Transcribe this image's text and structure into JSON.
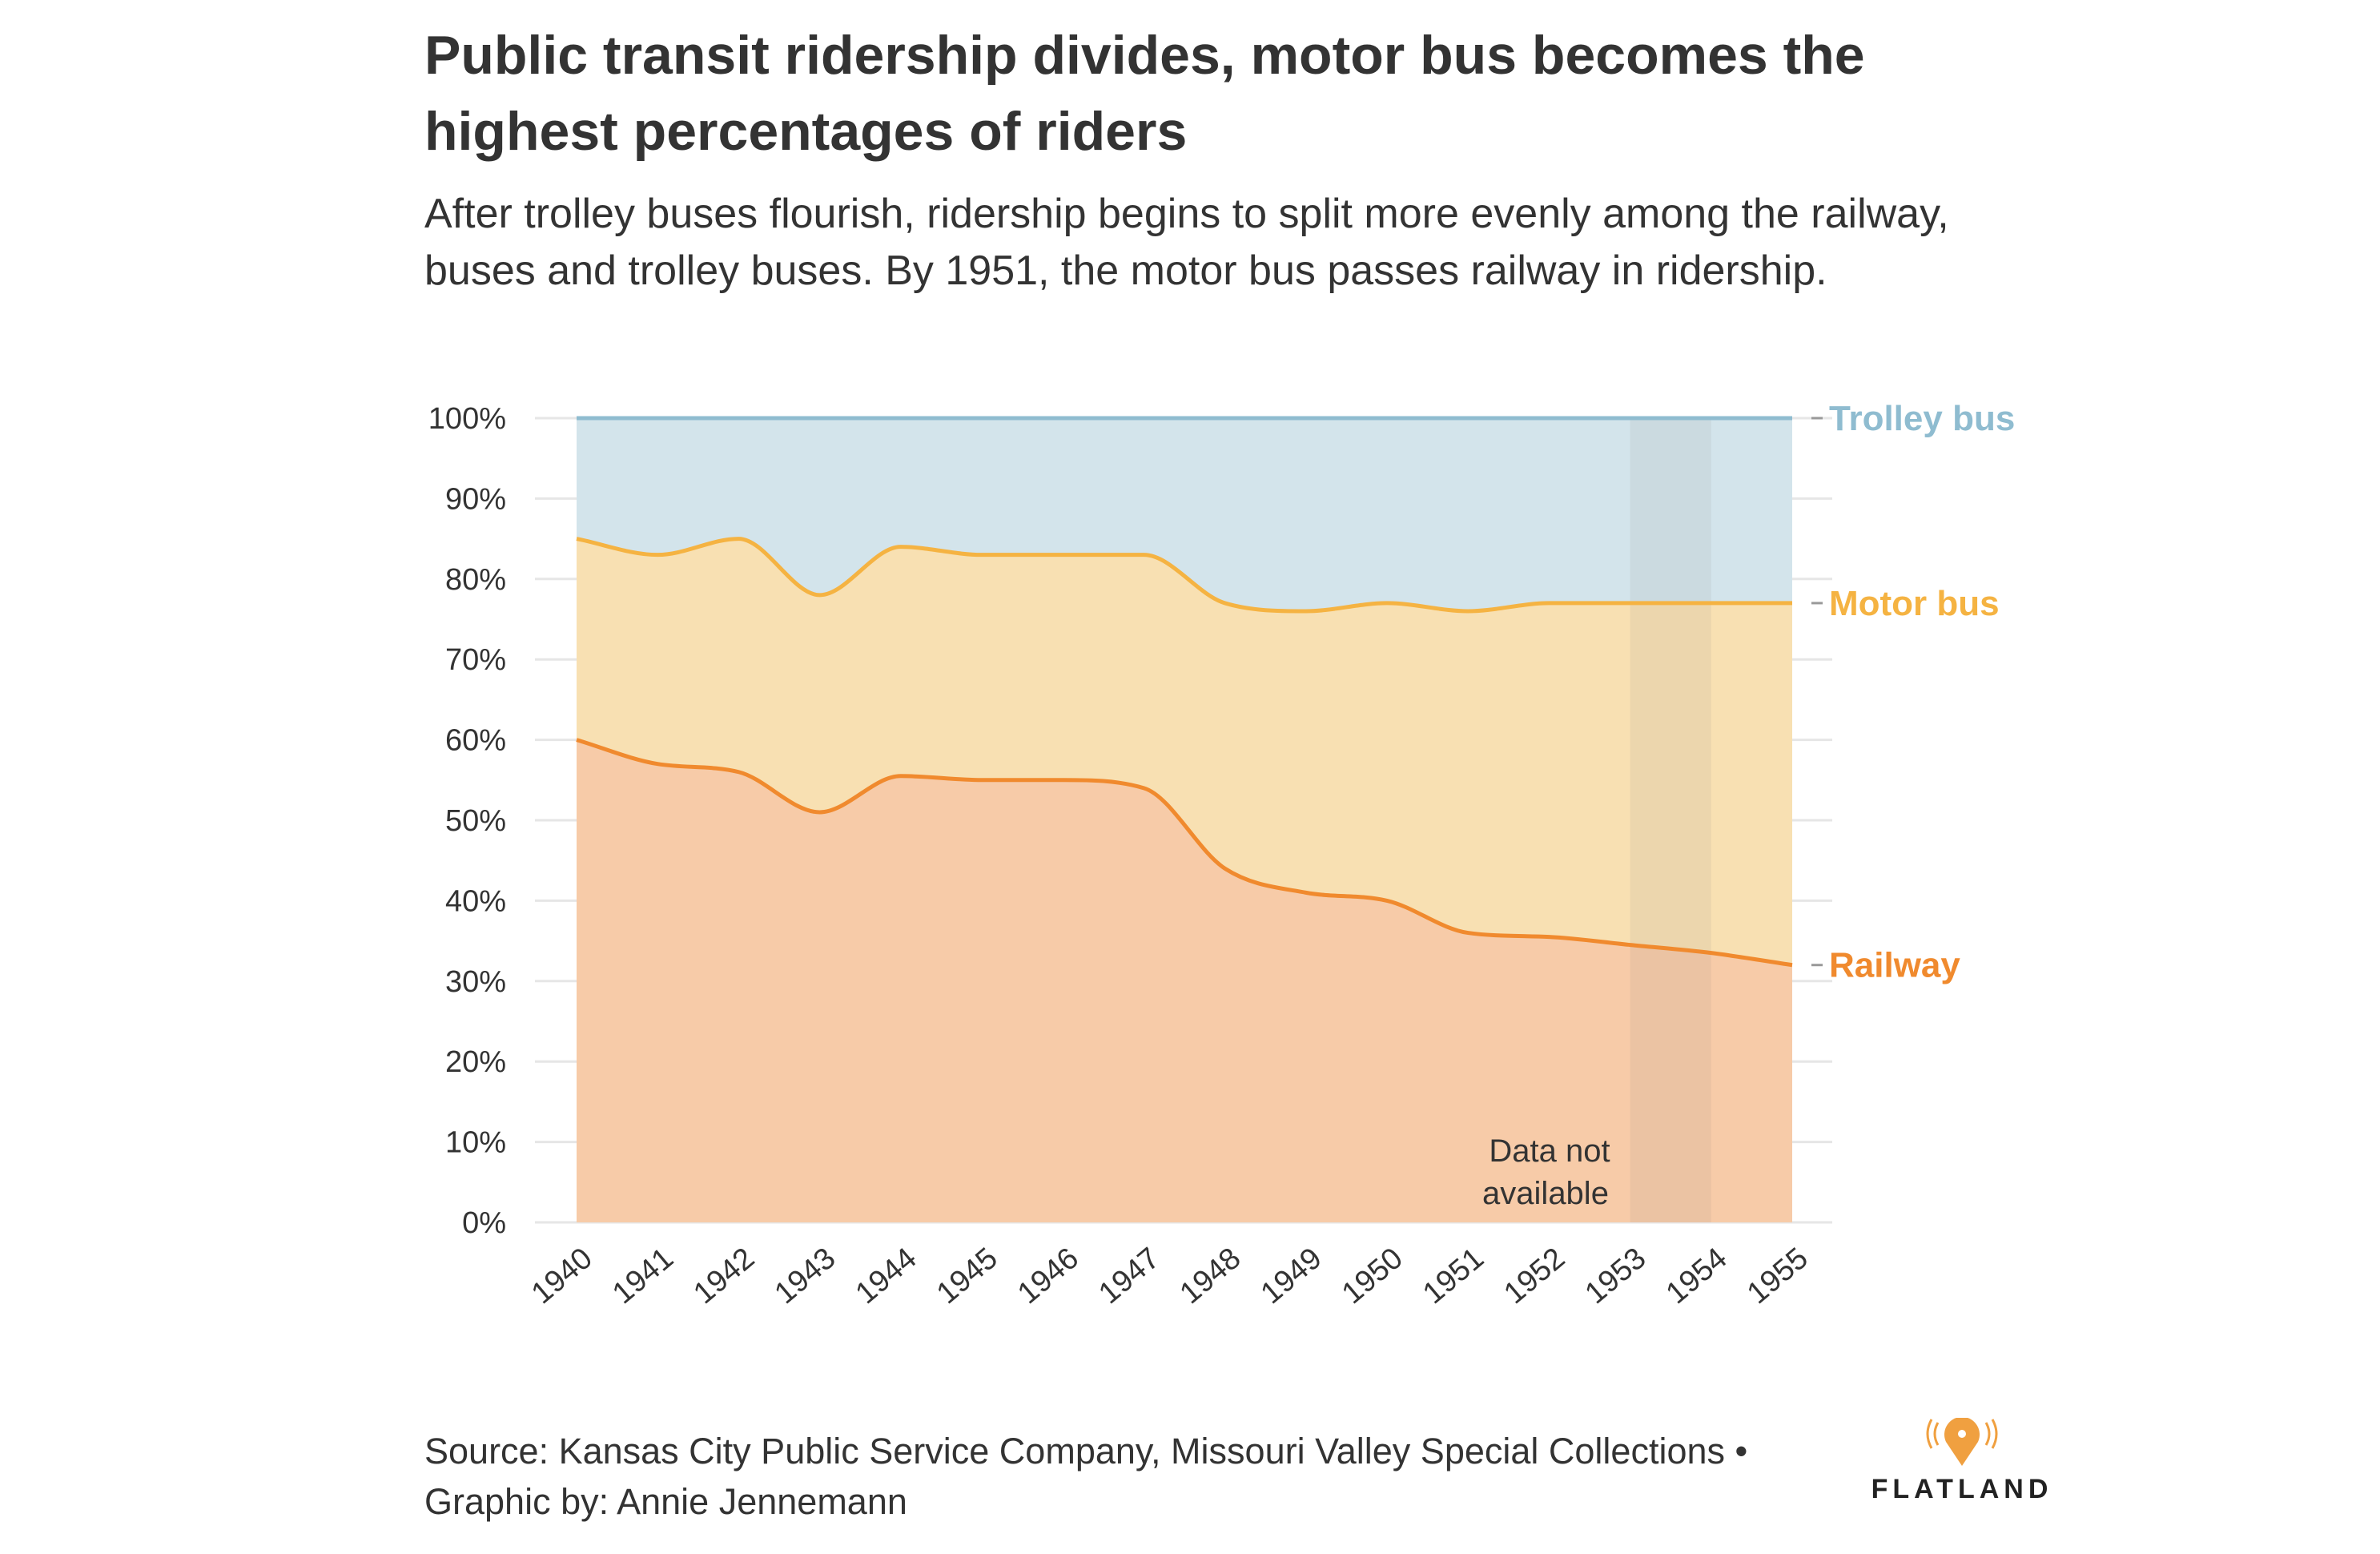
{
  "title": "Public transit ridership divides, motor bus becomes the highest percentages of riders",
  "subtitle": "After trolley buses flourish, ridership begins to split more evenly among the railway, buses and trolley buses. By 1951, the motor bus passes railway in ridership.",
  "source": "Source: Kansas City Public Service Company, Missouri Valley Special Collections •",
  "credit": "Graphic by: Annie Jennemann",
  "logo": "FLATLAND",
  "chart_data": {
    "type": "area",
    "stacked": true,
    "x": [
      1940,
      1941,
      1942,
      1943,
      1944,
      1945,
      1946,
      1947,
      1948,
      1949,
      1950,
      1951,
      1952,
      1953,
      1954,
      1955
    ],
    "x_tick_labels": [
      "1940",
      "1941",
      "1942",
      "1943",
      "1944",
      "1945",
      "1946",
      "1947",
      "1948",
      "1949",
      "1950",
      "1951",
      "1952",
      "1953",
      "1954",
      "1955"
    ],
    "ylim": [
      0,
      100
    ],
    "y_ticks": [
      0,
      10,
      20,
      30,
      40,
      50,
      60,
      70,
      80,
      90,
      100
    ],
    "y_tick_labels": [
      "0%",
      "10%",
      "20%",
      "30%",
      "40%",
      "50%",
      "60%",
      "70%",
      "80%",
      "90%",
      "100%"
    ],
    "grid": true,
    "legend_placement": "right, labels at line ends",
    "series": [
      {
        "name": "Railway",
        "color": "#f08a2e",
        "fill": "#f7cba8",
        "values": [
          60,
          57,
          56,
          51,
          55.5,
          55,
          55,
          54,
          44,
          41,
          40,
          36,
          35.5,
          34.5,
          33.5,
          32
        ]
      },
      {
        "name": "Motor bus",
        "color": "#f5b342",
        "fill": "#f8e0b2",
        "values": [
          25,
          26,
          29,
          27,
          28.5,
          28,
          28,
          29,
          33,
          35,
          37,
          40,
          41.5,
          42.5,
          43.5,
          45
        ]
      },
      {
        "name": "Trolley bus",
        "color": "#8fbcd0",
        "fill": "#d3e4eb",
        "values": [
          15,
          17,
          15,
          22,
          16,
          17,
          17,
          17,
          23,
          24,
          23,
          24,
          23,
          23,
          23,
          23
        ]
      }
    ],
    "annotations": [
      {
        "text_lines": [
          "Data not",
          "available"
        ],
        "x_range": [
          1953,
          1954
        ]
      }
    ]
  }
}
